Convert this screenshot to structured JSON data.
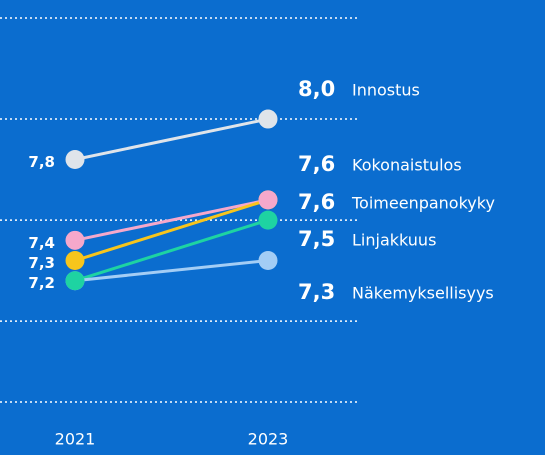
{
  "chart_data": {
    "type": "slope",
    "categories": [
      "2021",
      "2023"
    ],
    "series": [
      {
        "name": "Innostus",
        "color": "#dfe4ea",
        "values": [
          7.8,
          8.0
        ],
        "value_labels": [
          "7,8",
          "8,0"
        ]
      },
      {
        "name": "Kokonaistulos",
        "color": "#f5a8cb",
        "values": [
          7.4,
          7.6
        ],
        "value_labels": [
          "7,4",
          "7,6"
        ]
      },
      {
        "name": "Toimeenpanokyky",
        "color": "#f7c51c",
        "values": [
          7.3,
          7.6
        ],
        "value_labels": [
          "7,3",
          "7,6"
        ]
      },
      {
        "name": "Linjakkuus",
        "color": "#1ed3a2",
        "values": [
          7.2,
          7.5
        ],
        "value_labels": [
          "7,2",
          "7,5"
        ]
      },
      {
        "name": "Näkemyksellisyys",
        "color": "#a3cdf5",
        "values": [
          7.2,
          7.3
        ],
        "value_labels": [
          null,
          "7,3"
        ]
      }
    ],
    "ylim": [
      6.6,
      8.5
    ],
    "yticks": [
      8.5,
      8.0,
      7.5,
      7.0,
      6.6
    ],
    "grid": true
  }
}
